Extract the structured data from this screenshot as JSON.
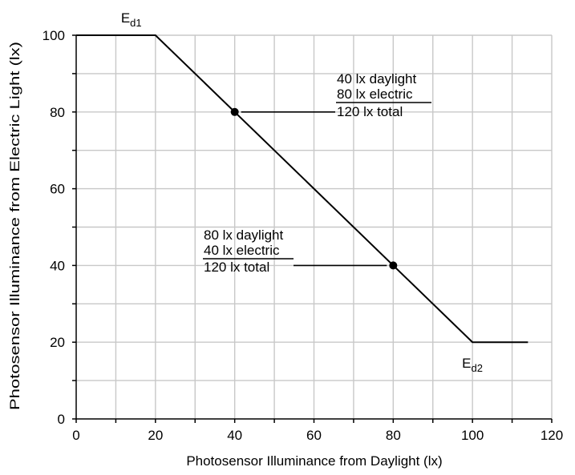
{
  "chart_data": {
    "type": "line",
    "xlabel": "Photosensor Illuminance from Daylight (lx)",
    "ylabel": "Photosensor Illuminance from Electric Light (lx)",
    "xlim": [
      0,
      120
    ],
    "ylim": [
      0,
      100
    ],
    "x_ticks": [
      "0",
      "20",
      "40",
      "60",
      "80",
      "100",
      "120"
    ],
    "y_ticks": [
      "0",
      "20",
      "40",
      "60",
      "80",
      "100"
    ],
    "grid": true,
    "series": [
      {
        "points": [
          [
            0,
            100
          ],
          [
            20,
            100
          ],
          [
            100,
            20
          ],
          [
            114,
            20
          ]
        ]
      }
    ],
    "markers": [
      [
        40,
        80
      ],
      [
        80,
        40
      ]
    ],
    "point_labels": [
      {
        "text": "E",
        "sub": "d1",
        "x": 20,
        "y": 100
      },
      {
        "text": "E",
        "sub": "d2",
        "x": 100,
        "y": 20
      }
    ],
    "annotations": [
      {
        "point": [
          40,
          80
        ],
        "lines": [
          "40 lx daylight",
          "80 lx electric",
          "120 lx total"
        ]
      },
      {
        "point": [
          80,
          40
        ],
        "lines": [
          "80 lx daylight",
          "40 lx electric",
          "120 lx total"
        ]
      }
    ]
  }
}
